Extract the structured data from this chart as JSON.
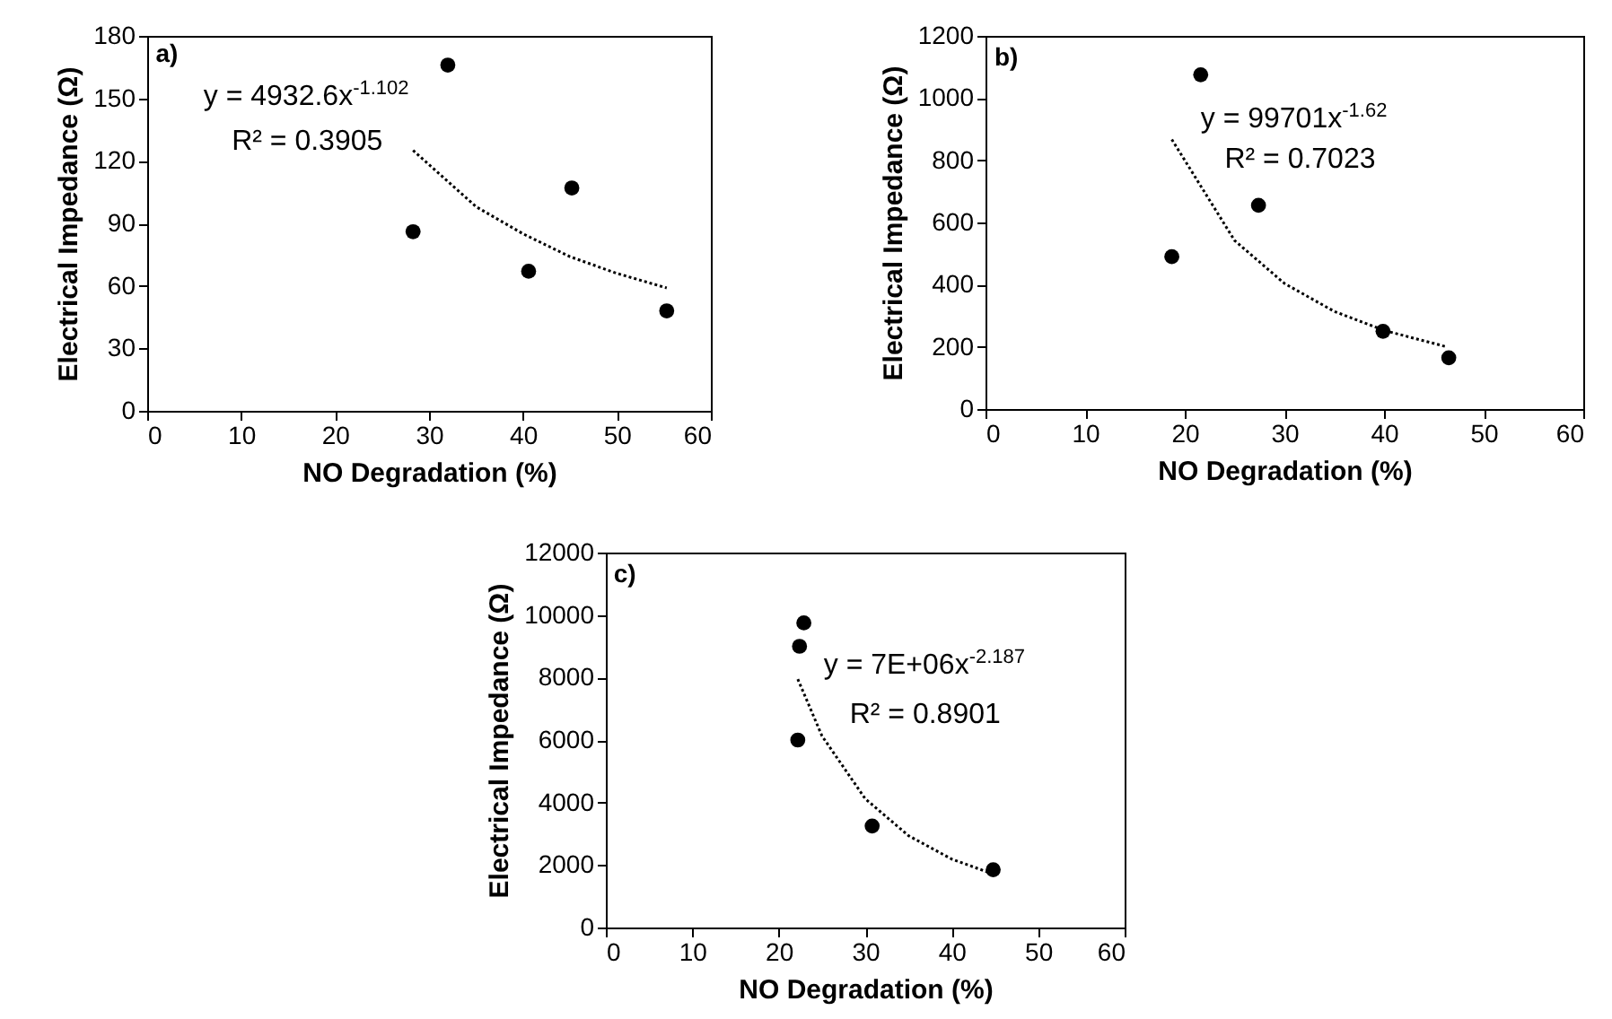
{
  "chart_data": [
    {
      "type": "scatter",
      "xlabel": "NO Degradation (%)",
      "ylabel": "Electrical Impedance (Ω)",
      "xlim": [
        0,
        60
      ],
      "xticks": [
        0,
        10,
        20,
        30,
        40,
        50,
        60
      ],
      "ylim": [
        0,
        180
      ],
      "yticks": [
        0,
        30,
        60,
        90,
        120,
        150,
        180
      ],
      "annotations": [
        "a)",
        "y = 4932.6x$^{-1.102}$",
        "R² = 0.3905"
      ],
      "series": [
        {
          "type": "scatter",
          "x": [
            28.3,
            32,
            40.6,
            45.2,
            55.3
          ],
          "values": [
            86,
            166,
            67,
            107,
            48
          ],
          "color": "#000000",
          "marker": "circle"
        },
        {
          "type": "line",
          "x": [
            28.3,
            35,
            40,
            45,
            50,
            55.3
          ],
          "values": [
            125,
            98,
            85,
            74,
            66,
            59
          ],
          "color": "#000000",
          "line_style": "dotted"
        }
      ]
    },
    {
      "type": "scatter",
      "xlabel": "NO Degradation (%)",
      "ylabel": "Electrical Impedance (Ω)",
      "xlim": [
        0,
        60
      ],
      "xticks": [
        0,
        10,
        20,
        30,
        40,
        50,
        60
      ],
      "ylim": [
        0,
        1200
      ],
      "yticks": [
        0,
        200,
        400,
        600,
        800,
        1000,
        1200
      ],
      "annotations": [
        "b)",
        "y = 99701x$^{-1.62}$",
        "R² = 0.7023"
      ],
      "series": [
        {
          "type": "scatter",
          "x": [
            18.7,
            21.6,
            27.4,
            39.9,
            46.5
          ],
          "values": [
            490,
            1075,
            655,
            250,
            165
          ],
          "color": "#000000",
          "marker": "circle"
        },
        {
          "type": "line",
          "x": [
            18.7,
            25,
            30,
            35,
            40,
            46.3
          ],
          "values": [
            867,
            542,
            404,
            314,
            253,
            200
          ],
          "color": "#000000",
          "line_style": "dotted"
        }
      ]
    },
    {
      "type": "scatter",
      "xlabel": "NO Degradation (%)",
      "ylabel": "Electrical Impedance (Ω)",
      "xlim": [
        0,
        60
      ],
      "xticks": [
        0,
        10,
        20,
        30,
        40,
        50,
        60
      ],
      "ylim": [
        0,
        12000
      ],
      "yticks": [
        0,
        2000,
        4000,
        6000,
        8000,
        10000,
        12000
      ],
      "annotations": [
        "c)",
        "y = 7E+06x$^{-2.187}$",
        "R² = 0.8901"
      ],
      "series": [
        {
          "type": "scatter",
          "x": [
            22.2,
            22.4,
            22.9,
            30.8,
            44.8
          ],
          "values": [
            6000,
            9000,
            9750,
            3250,
            1850
          ],
          "color": "#000000",
          "marker": "circle"
        },
        {
          "type": "line",
          "x": [
            22.2,
            25,
            30,
            35,
            40,
            44.8
          ],
          "values": [
            7950,
            6130,
            4120,
            2940,
            2190,
            1710
          ],
          "color": "#000000",
          "line_style": "dotted"
        }
      ]
    }
  ]
}
